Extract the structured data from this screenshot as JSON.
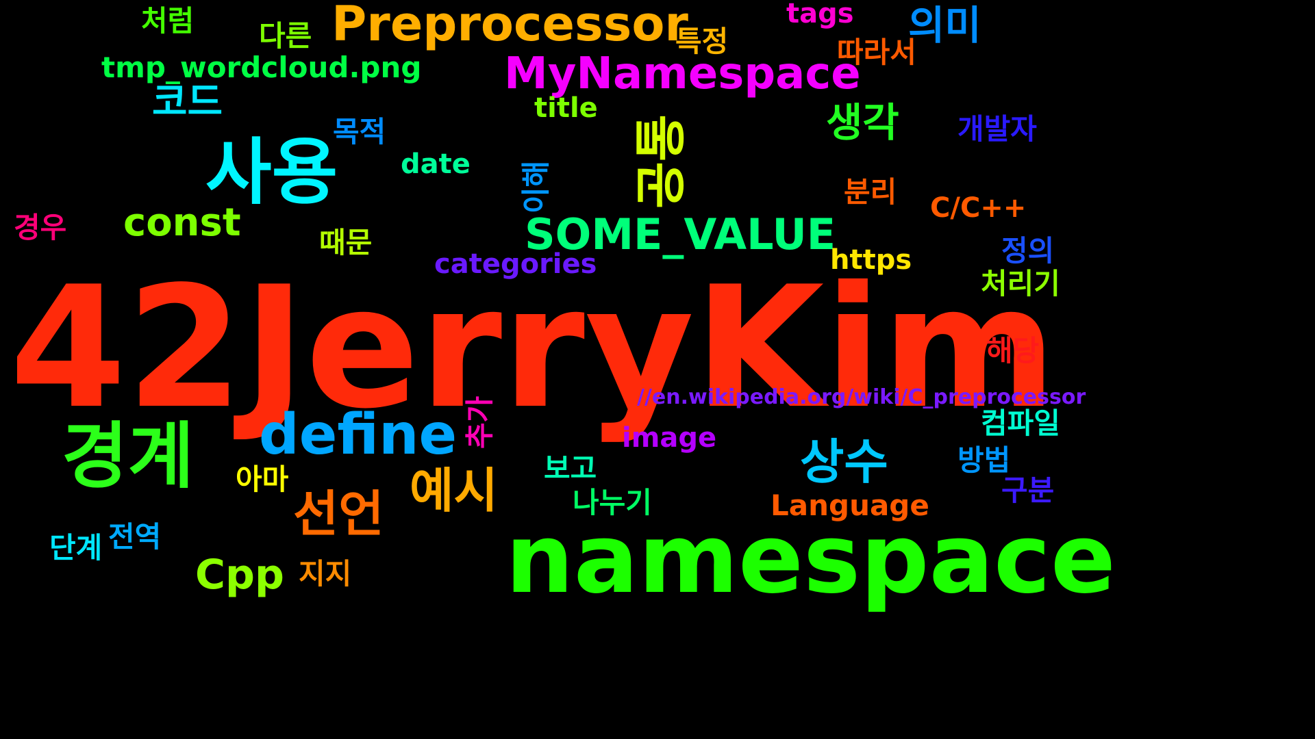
{
  "image": {
    "background": "#000000",
    "words": [
      {
        "text": "42JerryKim",
        "color": "#ff2a0a",
        "orientation": "horizontal"
      },
      {
        "text": "namespace",
        "color": "#1cff00",
        "orientation": "horizontal"
      },
      {
        "text": "사용",
        "color": "#00f5ff",
        "orientation": "horizontal"
      },
      {
        "text": "경계",
        "color": "#2cff1a",
        "orientation": "horizontal"
      },
      {
        "text": "define",
        "color": "#00a6ff",
        "orientation": "horizontal"
      },
      {
        "text": "Preprocessor",
        "color": "#ffae00",
        "orientation": "horizontal"
      },
      {
        "text": "MyNamespace",
        "color": "#f500ff",
        "orientation": "horizontal"
      },
      {
        "text": "SOME_VALUE",
        "color": "#00ff7a",
        "orientation": "horizontal"
      },
      {
        "text": "공통",
        "color": "#d4ff00",
        "orientation": "vertical"
      },
      {
        "text": "상수",
        "color": "#00c8ff",
        "orientation": "horizontal"
      },
      {
        "text": "선언",
        "color": "#ff6a00",
        "orientation": "horizontal"
      },
      {
        "text": "예시",
        "color": "#ffaa00",
        "orientation": "horizontal"
      },
      {
        "text": "const",
        "color": "#7dff00",
        "orientation": "horizontal"
      },
      {
        "text": "Cpp",
        "color": "#8cff00",
        "orientation": "horizontal"
      },
      {
        "text": "생각",
        "color": "#22ff22",
        "orientation": "horizontal"
      },
      {
        "text": "의미",
        "color": "#008cff",
        "orientation": "horizontal"
      },
      {
        "text": "코드",
        "color": "#00e6ff",
        "orientation": "horizontal"
      },
      {
        "text": "tmp_wordcloud.png",
        "color": "#00ff44",
        "orientation": "horizontal"
      },
      {
        "text": "Language",
        "color": "#ff5a00",
        "orientation": "horizontal"
      },
      {
        "text": "categories",
        "color": "#6a1aff",
        "orientation": "horizontal"
      },
      {
        "text": "image",
        "color": "#b400ff",
        "orientation": "horizontal"
      },
      {
        "text": "https",
        "color": "#ffe600",
        "orientation": "horizontal"
      },
      {
        "text": "//en.wikipedia.org/wiki/C_preprocessor",
        "color": "#7a1aff",
        "orientation": "horizontal"
      },
      {
        "text": "C/C++",
        "color": "#ff5a00",
        "orientation": "horizontal"
      },
      {
        "text": "date",
        "color": "#00ff9a",
        "orientation": "horizontal"
      },
      {
        "text": "title",
        "color": "#7dff00",
        "orientation": "horizontal"
      },
      {
        "text": "tags",
        "color": "#ff00d2",
        "orientation": "horizontal"
      },
      {
        "text": "처럼",
        "color": "#44ff00",
        "orientation": "horizontal"
      },
      {
        "text": "다른",
        "color": "#7dff00",
        "orientation": "horizontal"
      },
      {
        "text": "특정",
        "color": "#ffb400",
        "orientation": "horizontal"
      },
      {
        "text": "따라서",
        "color": "#ff5a00",
        "orientation": "horizontal"
      },
      {
        "text": "개발자",
        "color": "#2a1aff",
        "orientation": "horizontal"
      },
      {
        "text": "목적",
        "color": "#008cff",
        "orientation": "horizontal"
      },
      {
        "text": "이해",
        "color": "#0096ff",
        "orientation": "vertical"
      },
      {
        "text": "분리",
        "color": "#ff5a00",
        "orientation": "horizontal"
      },
      {
        "text": "경우",
        "color": "#ff0078",
        "orientation": "horizontal"
      },
      {
        "text": "때문",
        "color": "#b4ff00",
        "orientation": "horizontal"
      },
      {
        "text": "정의",
        "color": "#1a50ff",
        "orientation": "horizontal"
      },
      {
        "text": "처리기",
        "color": "#8cff00",
        "orientation": "horizontal"
      },
      {
        "text": "해당",
        "color": "#ff1a1a",
        "orientation": "horizontal"
      },
      {
        "text": "컴파일",
        "color": "#00ffd2",
        "orientation": "horizontal"
      },
      {
        "text": "추가",
        "color": "#ff00b4",
        "orientation": "vertical"
      },
      {
        "text": "방법",
        "color": "#0096ff",
        "orientation": "horizontal"
      },
      {
        "text": "구분",
        "color": "#3c1aff",
        "orientation": "horizontal"
      },
      {
        "text": "아마",
        "color": "#ffff00",
        "orientation": "horizontal"
      },
      {
        "text": "보고",
        "color": "#00ffb4",
        "orientation": "horizontal"
      },
      {
        "text": "나누기",
        "color": "#00ff64",
        "orientation": "horizontal"
      },
      {
        "text": "단계",
        "color": "#00e6ff",
        "orientation": "horizontal"
      },
      {
        "text": "전역",
        "color": "#00aaff",
        "orientation": "horizontal"
      },
      {
        "text": "지지",
        "color": "#ff8c00",
        "orientation": "horizontal"
      }
    ]
  }
}
